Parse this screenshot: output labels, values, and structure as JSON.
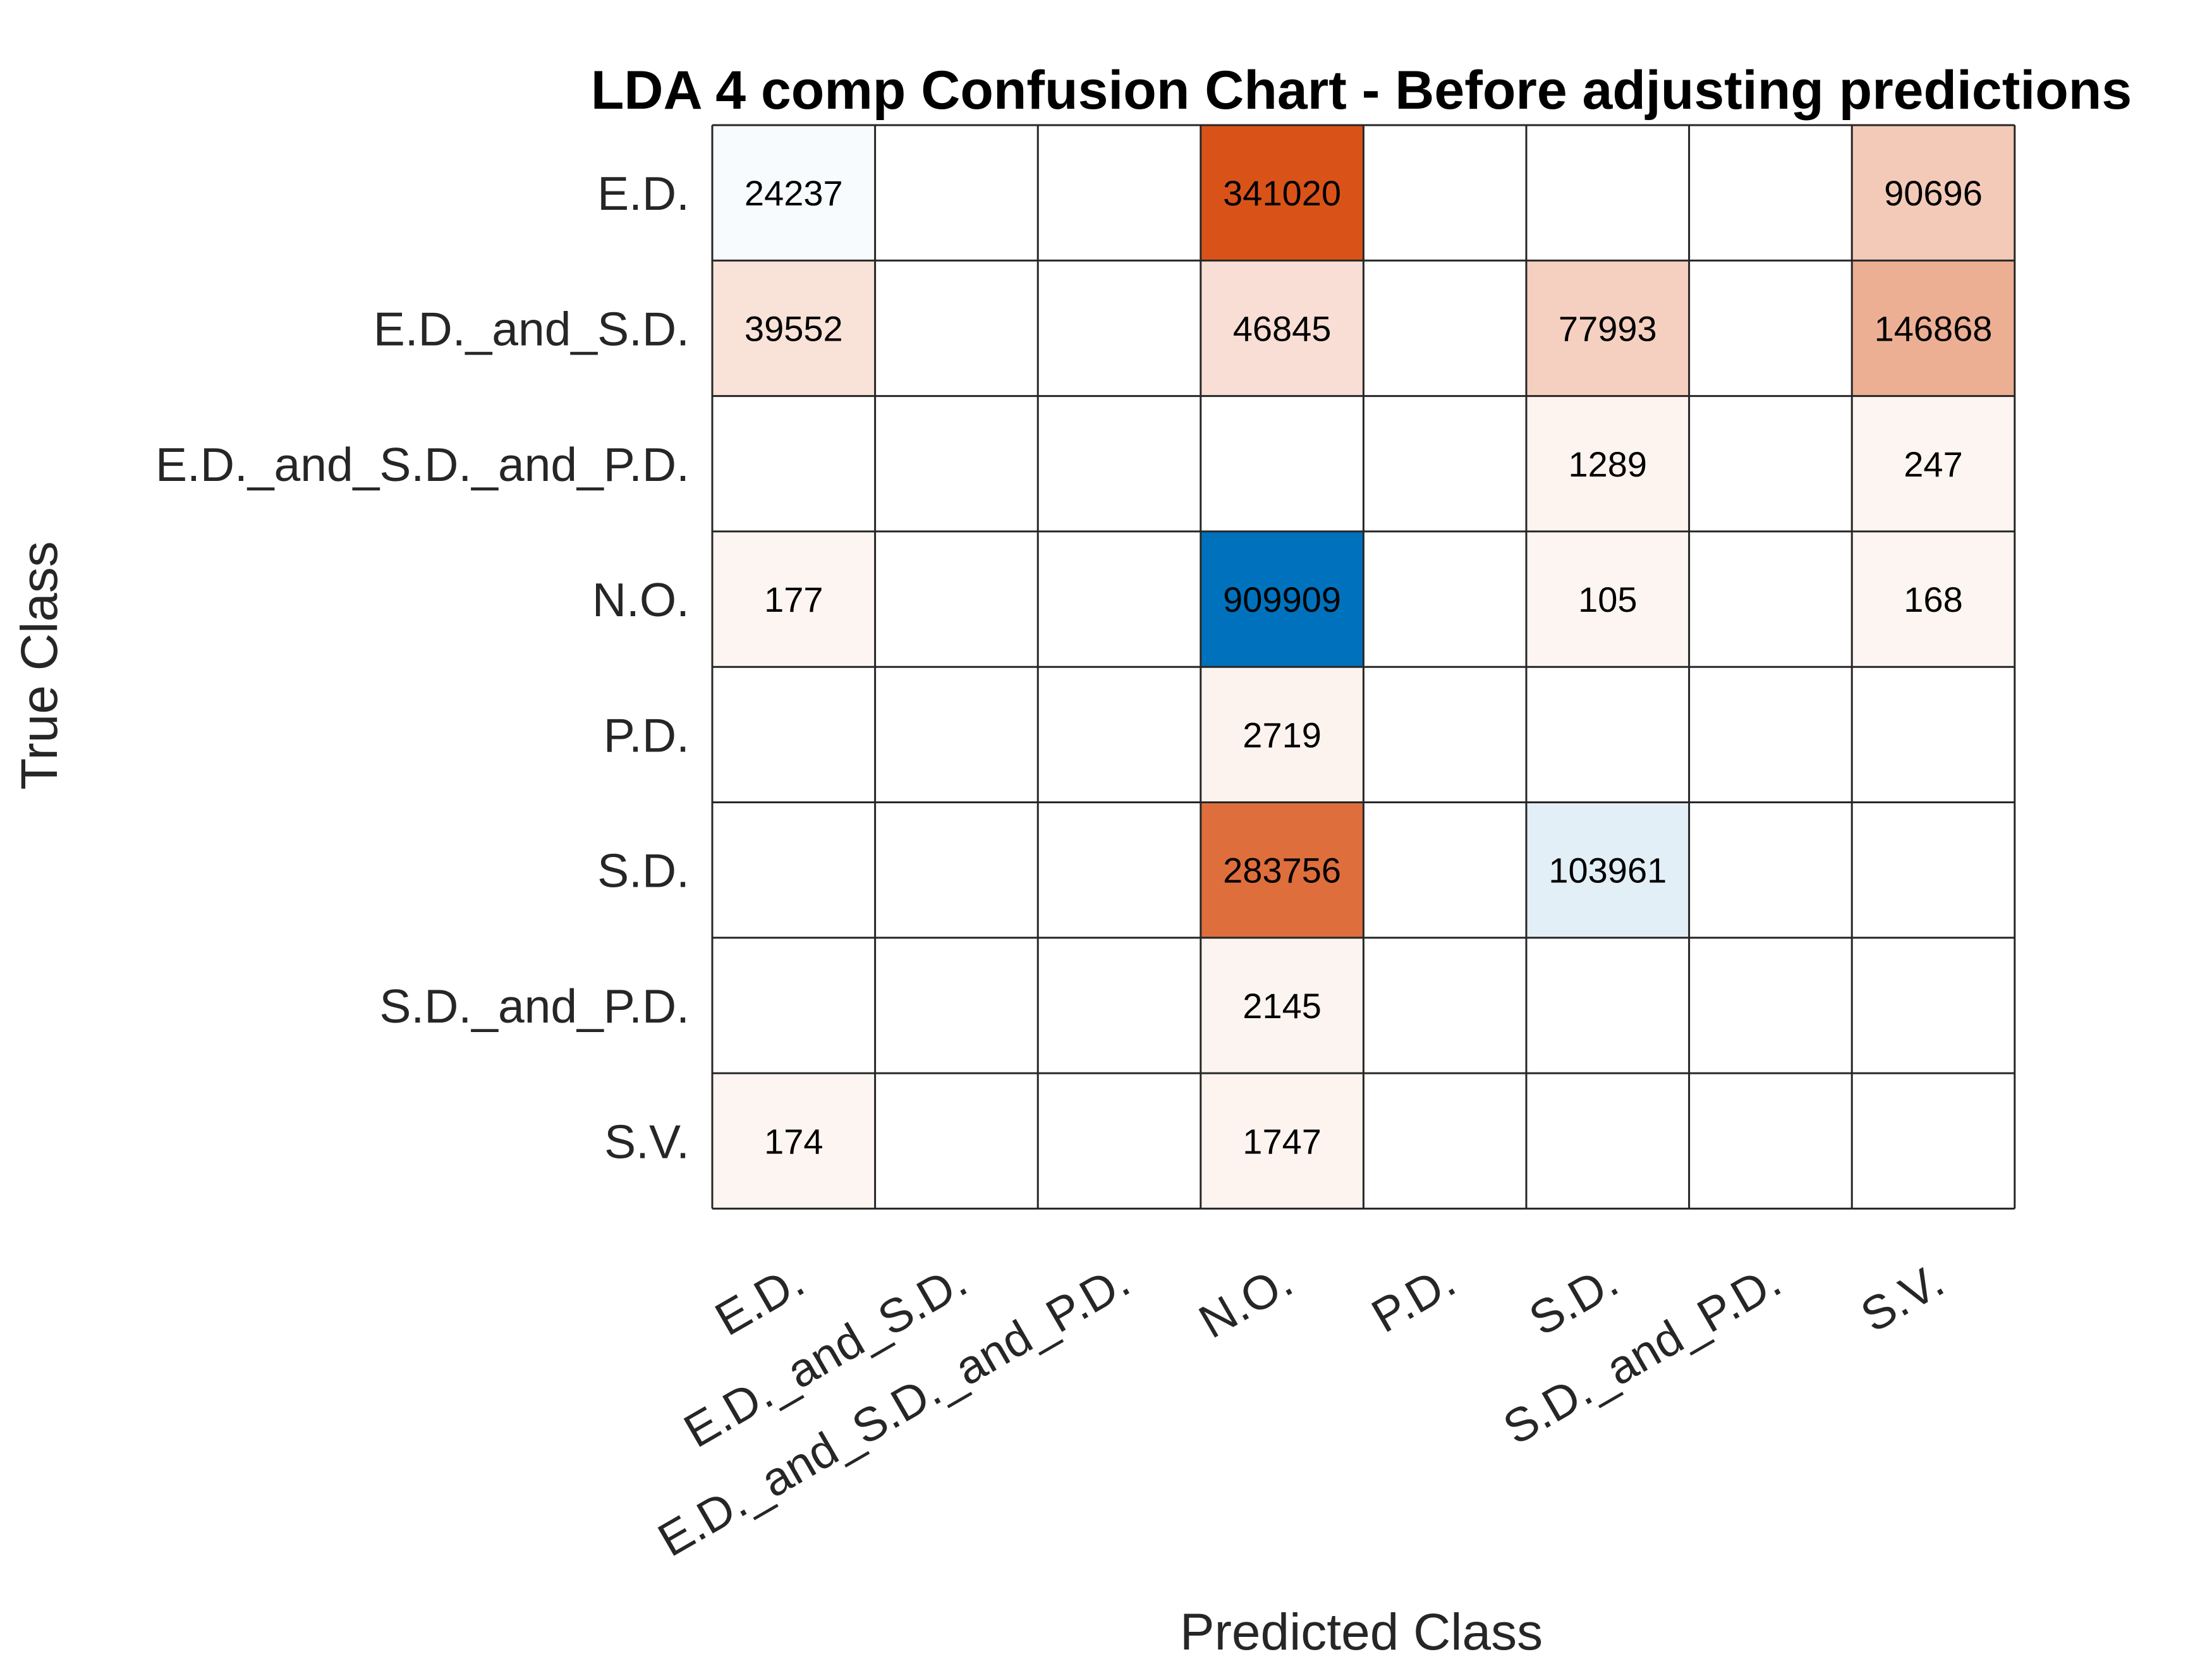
{
  "chart_data": {
    "type": "heatmap",
    "title": "LDA 4 comp Confusion Chart - Before adjusting predictions",
    "xlabel": "Predicted Class",
    "ylabel": "True Class",
    "row_labels": [
      "E.D.",
      "E.D._and_S.D.",
      "E.D._and_S.D._and_P.D.",
      "N.O.",
      "P.D.",
      "S.D.",
      "S.D._and_P.D.",
      "S.V."
    ],
    "col_labels": [
      "E.D.",
      "E.D._and_S.D.",
      "E.D._and_S.D._and_P.D.",
      "N.O.",
      "P.D.",
      "S.D.",
      "S.D._and_P.D.",
      "S.V."
    ],
    "matrix": [
      [
        24237,
        null,
        null,
        341020,
        null,
        null,
        null,
        90696
      ],
      [
        39552,
        null,
        null,
        46845,
        null,
        77993,
        null,
        146868
      ],
      [
        null,
        null,
        null,
        null,
        null,
        1289,
        null,
        247
      ],
      [
        177,
        null,
        null,
        909909,
        null,
        105,
        null,
        168
      ],
      [
        null,
        null,
        null,
        2719,
        null,
        null,
        null,
        null
      ],
      [
        null,
        null,
        null,
        283756,
        null,
        103961,
        null,
        null
      ],
      [
        null,
        null,
        null,
        2145,
        null,
        null,
        null,
        null
      ],
      [
        174,
        null,
        null,
        1747,
        null,
        null,
        null,
        null
      ]
    ],
    "colors": {
      "diagonal_max": "#0072BD",
      "diagonal_min": "#FFFFFF",
      "offdiagonal_max": "#D95319",
      "offdiagonal_min": "#FFFFFF",
      "grid_line": "#262626",
      "light_text": "#FFFFFF",
      "dark_text": "#000000"
    }
  }
}
